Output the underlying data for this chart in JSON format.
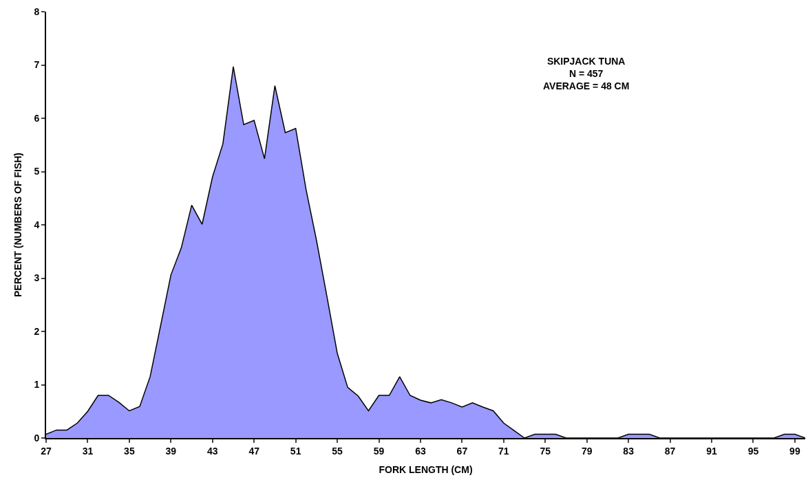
{
  "chart_data": {
    "type": "area",
    "xlabel": "FORK LENGTH (CM)",
    "ylabel": "PERCENT (NUMBERS OF FISH)",
    "annotations": [
      "SKIPJACK TUNA\nN = 457\nAVERAGE = 48 CM"
    ],
    "categories": [
      "27",
      null,
      null,
      null,
      "31",
      null,
      null,
      null,
      "35",
      null,
      null,
      null,
      "39",
      null,
      null,
      null,
      "43",
      null,
      null,
      null,
      "47",
      null,
      null,
      null,
      "51",
      null,
      null,
      null,
      "55",
      null,
      null,
      null,
      "59",
      null,
      null,
      null,
      "63",
      null,
      null,
      null,
      "67",
      null,
      null,
      null,
      "71",
      null,
      null,
      null,
      "75",
      null,
      null,
      null,
      "79",
      null,
      null,
      null,
      "83",
      null,
      null,
      null,
      "87",
      null,
      null,
      null,
      "91",
      null,
      null,
      null,
      "95",
      null,
      null,
      null,
      "99",
      null
    ],
    "series": [
      {
        "color": "#9999ff",
        "values": [
          0.07,
          0.15,
          0.15,
          0.28,
          0.5,
          0.8,
          0.8,
          0.67,
          0.51,
          0.59,
          1.15,
          2.1,
          3.06,
          3.57,
          4.37,
          4.01,
          4.9,
          5.52,
          6.97,
          5.88,
          5.96,
          5.24,
          6.61,
          5.73,
          5.81,
          4.66,
          3.71,
          2.66,
          1.59,
          0.95,
          0.79,
          0.51,
          0.8,
          0.8,
          1.15,
          0.8,
          0.71,
          0.66,
          0.72,
          0.66,
          0.58,
          0.66,
          0.58,
          0.51,
          0.28,
          0.14,
          0,
          0.07,
          0.07,
          0.07,
          0,
          0,
          0,
          0,
          0,
          0,
          0.07,
          0.07,
          0.07,
          0,
          0,
          0,
          0,
          0,
          0,
          0,
          0,
          0,
          0,
          0,
          0,
          0.07,
          0.07,
          0
        ]
      }
    ],
    "ylim": [
      0,
      8
    ],
    "yticks": [
      0,
      1,
      2,
      3,
      4,
      5,
      6,
      7,
      8
    ]
  }
}
